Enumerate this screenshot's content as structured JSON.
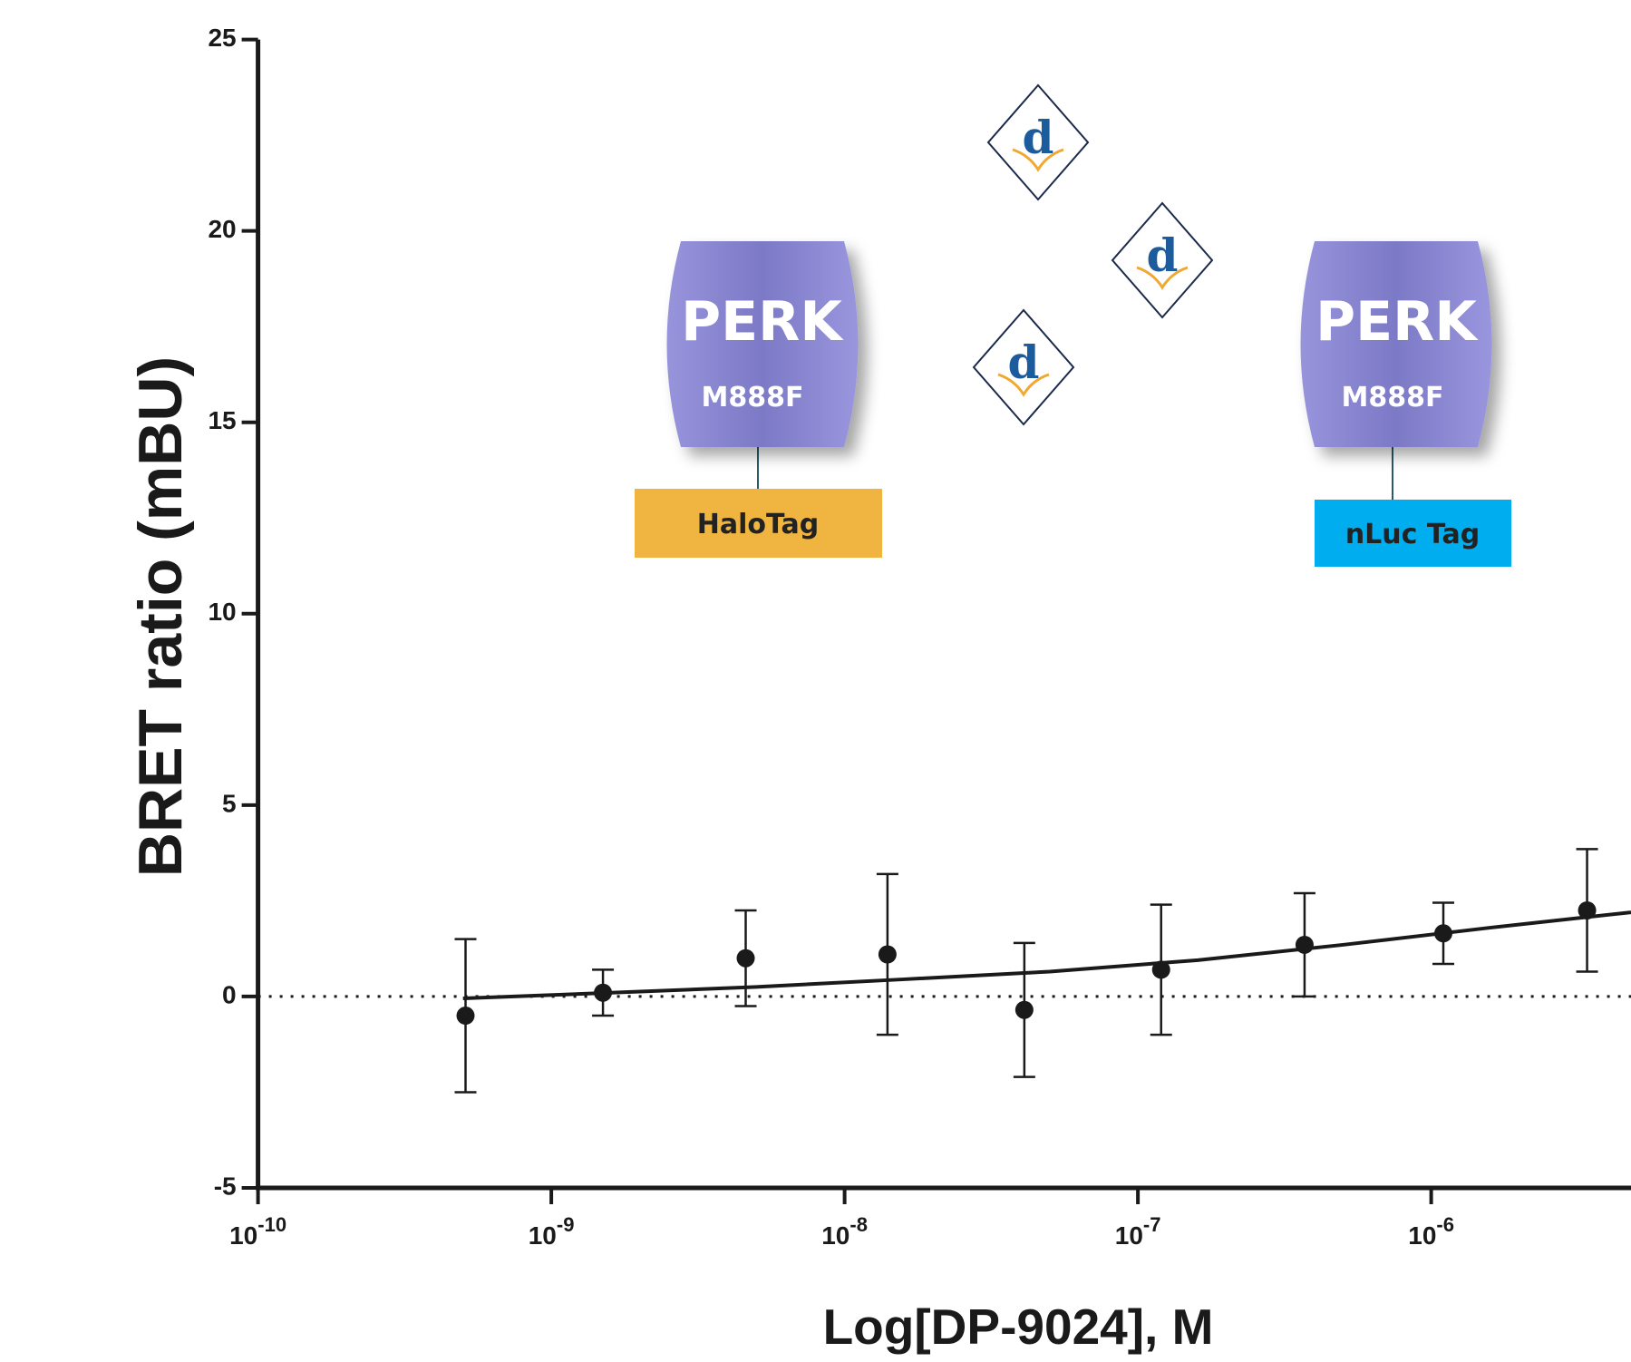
{
  "chart_data": {
    "type": "scatter",
    "x_label": "Log[DP-9024], M",
    "y_label": "BRET ratio (mBU)",
    "xscale": "log",
    "xlim": [
      1e-10,
      4.8e-06
    ],
    "xticks": [
      {
        "value": 1e-10,
        "label": "10-10"
      },
      {
        "value": 1e-09,
        "label": "10-9"
      },
      {
        "value": 1e-08,
        "label": "10-8"
      },
      {
        "value": 1e-07,
        "label": "10-7"
      },
      {
        "value": 1e-06,
        "label": "10-6"
      }
    ],
    "ylim": [
      -5,
      25
    ],
    "yticks": [
      -5,
      0,
      5,
      10,
      15,
      20,
      25
    ],
    "x": [
      5.1e-10,
      1.5e-09,
      4.6e-09,
      1.4e-08,
      4.1e-08,
      1.2e-07,
      3.7e-07,
      1.1e-06,
      3.4e-06
    ],
    "values": [
      -0.5,
      0.1,
      1.0,
      1.1,
      -0.35,
      0.7,
      1.35,
      1.65,
      2.25
    ],
    "errors": [
      2.0,
      0.6,
      1.25,
      2.1,
      1.75,
      1.7,
      1.35,
      0.8,
      1.6
    ],
    "color": "#1a1a1a",
    "fit": {
      "x": [
        5e-10,
        1.6e-09,
        5e-09,
        1.6e-08,
        5e-08,
        1.6e-07,
        5e-07,
        1.6e-06,
        4.8e-06
      ],
      "values": [
        -0.05,
        0.1,
        0.25,
        0.45,
        0.65,
        0.95,
        1.35,
        1.8,
        2.2
      ]
    },
    "reference_line": 0
  },
  "diagram": {
    "left_protein": {
      "name": "PERK",
      "mutation": "M888F",
      "tag": "HaloTag"
    },
    "right_protein": {
      "name": "PERK",
      "mutation": "M888F",
      "tag": "nLuc Tag"
    },
    "ligands": [
      "d",
      "d",
      "d"
    ]
  }
}
